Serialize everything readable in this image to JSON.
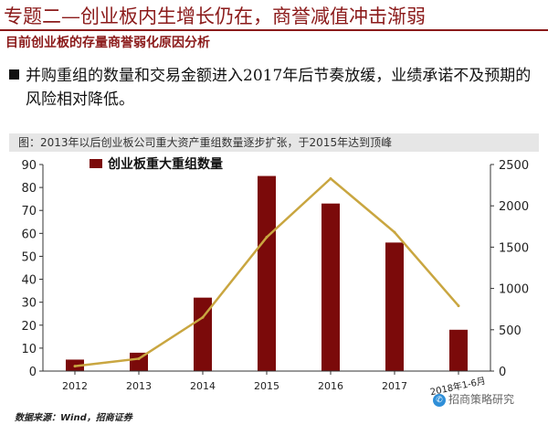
{
  "header": {
    "title": "专题二—创业板内生增长仍在，商誉减值冲击渐弱",
    "subtitle": "目前创业板的存量商誉弱化原因分析"
  },
  "bullet": {
    "text": "并购重组的数量和交易金额进入2017年后节奏放缓，业绩承诺不及预期的风险相对降低。"
  },
  "figure": {
    "caption": "图：2013年以后创业板公司重大资产重组数量逐步扩张，于2015年达到顶峰"
  },
  "footer": {
    "source": "数据来源：Wind，招商证券",
    "watermark": "招商策略研究"
  },
  "colors": {
    "bar": "#7b0a0a",
    "line": "#c9a640",
    "title": "#8b1a1a"
  },
  "chart_data": {
    "type": "bar",
    "categories": [
      "2012",
      "2013",
      "2014",
      "2015",
      "2016",
      "2017",
      "2018年1-6月"
    ],
    "series": [
      {
        "name": "创业板重大重组数量",
        "type": "bar",
        "axis": "left",
        "values": [
          5,
          8,
          32,
          85,
          73,
          56,
          18
        ]
      },
      {
        "type": "line",
        "axis": "right",
        "values": [
          60,
          150,
          650,
          1620,
          2330,
          1680,
          790
        ]
      }
    ],
    "yticks_left": [
      "0",
      "10",
      "20",
      "30",
      "40",
      "50",
      "60",
      "70",
      "80",
      "90"
    ],
    "yticks_right": [
      "0",
      "500",
      "1000",
      "1500",
      "2000",
      "2500"
    ],
    "ylim_left": [
      0,
      90
    ],
    "ylim_right": [
      0,
      2500
    ],
    "grid": false,
    "legend": "top-left"
  }
}
